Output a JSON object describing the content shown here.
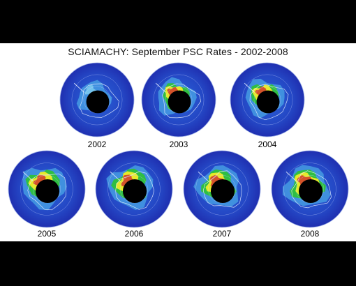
{
  "title": "SCIAMACHY: September PSC Rates - 2002-2008",
  "colors": {
    "outer_disk": "#1f2fb0",
    "mid_disk": "#2a63d8",
    "green": "#2fbe43",
    "yellow": "#e6ea2a",
    "red": "#d2412a",
    "pole_hole": "#000000",
    "background": "#ffffff"
  },
  "panels": [
    {
      "year": "2002",
      "intensity": 0.15
    },
    {
      "year": "2003",
      "intensity": 0.55
    },
    {
      "year": "2004",
      "intensity": 0.6
    },
    {
      "year": "2005",
      "intensity": 0.85
    },
    {
      "year": "2006",
      "intensity": 0.9
    },
    {
      "year": "2007",
      "intensity": 0.8
    },
    {
      "year": "2008",
      "intensity": 0.85
    }
  ]
}
